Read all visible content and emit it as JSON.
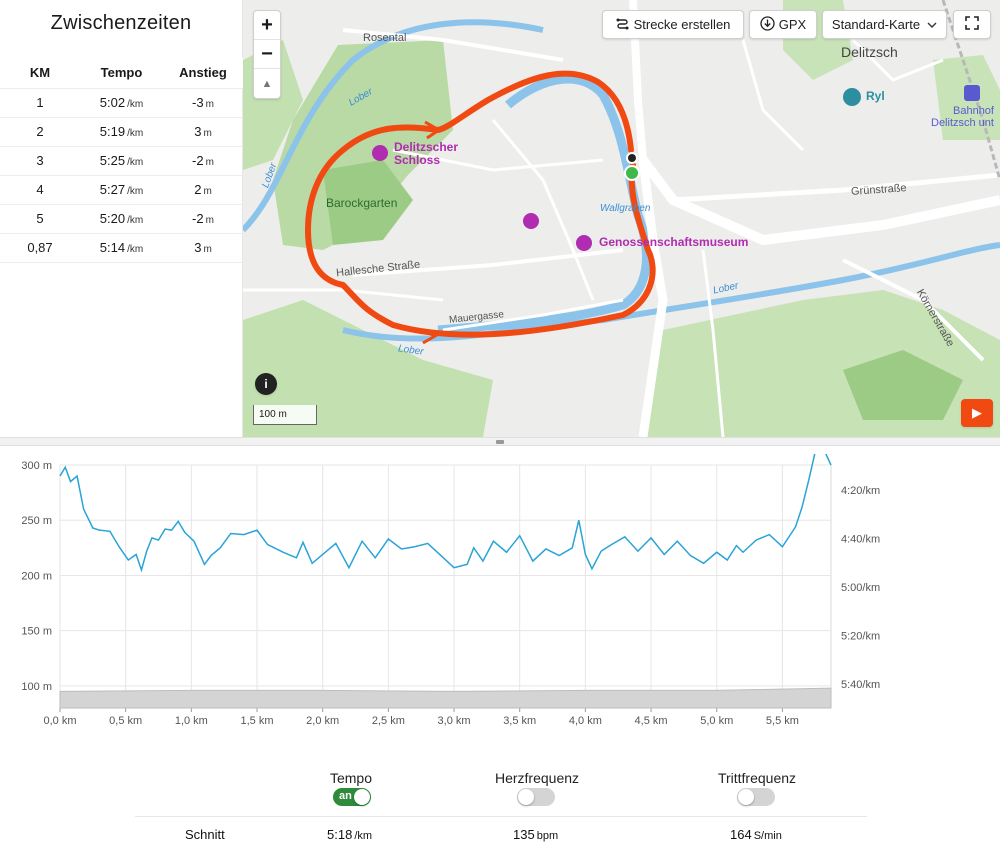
{
  "splits": {
    "title": "Zwischenzeiten",
    "headers": [
      "KM",
      "Tempo",
      "Anstieg"
    ],
    "tempo_unit": "/km",
    "ascent_unit": "m",
    "rows": [
      {
        "km": "1",
        "tempo": "5:02",
        "ascent": "-3"
      },
      {
        "km": "2",
        "tempo": "5:19",
        "ascent": "3"
      },
      {
        "km": "3",
        "tempo": "5:25",
        "ascent": "-2"
      },
      {
        "km": "4",
        "tempo": "5:27",
        "ascent": "2"
      },
      {
        "km": "5",
        "tempo": "5:20",
        "ascent": "-2"
      },
      {
        "km": "0,87",
        "tempo": "5:14",
        "ascent": "3"
      }
    ]
  },
  "map": {
    "buttons": {
      "create_route": "Strecke erstellen",
      "gpx": "GPX",
      "map_type": "Standard-Karte",
      "zoom_in": "+",
      "zoom_out": "−",
      "compass": "▲",
      "info": "i",
      "play": "▶"
    },
    "labels": {
      "town": "Delitzsch",
      "rosental": "Rosental",
      "lober1": "Lober",
      "lober2": "Lober",
      "lober3": "Lober",
      "lober4": "Lober",
      "wallgraben": "Wallgraben",
      "hallesche": "Hallesche Straße",
      "mauergasse": "Mauergasse",
      "gruen": "Grünstraße",
      "koerner": "Körnerstraße",
      "barockgarten": "Barockgarten",
      "schloss_line1": "Delitzscher",
      "schloss_line2": "Schloss",
      "museum": "Genossenschaftsmuseum",
      "ryl": "Ryl",
      "bahnhof_line1": "Bahnhof",
      "bahnhof_line2": "Delitzsch unt"
    },
    "scale": "100 m",
    "colors": {
      "route": "#f04a12",
      "water": "#8cc3ea",
      "park": "#b9d9a5",
      "road": "#ffffff"
    }
  },
  "chart_data": {
    "type": "line",
    "x_unit": "km",
    "xlim": [
      0,
      5.87
    ],
    "x_ticks": [
      "0,0 km",
      "0,5 km",
      "1,0 km",
      "1,5 km",
      "2,0 km",
      "2,5 km",
      "3,0 km",
      "3,5 km",
      "4,0 km",
      "4,5 km",
      "5,0 km",
      "5,5 km"
    ],
    "y_left_ticks": [
      "300 m",
      "250 m",
      "200 m",
      "150 m",
      "100 m"
    ],
    "y_left_range": [
      80,
      300
    ],
    "y_right_ticks": [
      "4:20/km",
      "4:40/km",
      "5:00/km",
      "5:20/km",
      "5:40/km"
    ],
    "elevation_series": {
      "x": [
        0,
        1,
        2,
        3,
        4,
        5,
        5.87
      ],
      "values": [
        95,
        96,
        96,
        95,
        96,
        96,
        98
      ]
    },
    "pace_series": {
      "x": [
        0,
        0.04,
        0.08,
        0.13,
        0.18,
        0.25,
        0.3,
        0.38,
        0.45,
        0.52,
        0.58,
        0.62,
        0.66,
        0.7,
        0.75,
        0.8,
        0.85,
        0.9,
        0.95,
        1.02,
        1.1,
        1.15,
        1.22,
        1.3,
        1.4,
        1.5,
        1.58,
        1.7,
        1.8,
        1.85,
        1.92,
        2.0,
        2.1,
        2.2,
        2.3,
        2.4,
        2.5,
        2.6,
        2.7,
        2.8,
        2.9,
        3.0,
        3.1,
        3.15,
        3.22,
        3.3,
        3.4,
        3.5,
        3.6,
        3.7,
        3.8,
        3.9,
        3.95,
        4.0,
        4.05,
        4.12,
        4.2,
        4.3,
        4.4,
        4.5,
        4.6,
        4.7,
        4.8,
        4.9,
        5.0,
        5.08,
        5.15,
        5.2,
        5.3,
        5.4,
        5.5,
        5.6,
        5.65,
        5.7,
        5.75,
        5.8,
        5.87
      ],
      "values": [
        290,
        298,
        285,
        290,
        260,
        243,
        241,
        240,
        226,
        214,
        219,
        205,
        222,
        234,
        232,
        242,
        241,
        249,
        239,
        231,
        210,
        218,
        225,
        238,
        237,
        241,
        228,
        221,
        216,
        230,
        211,
        219,
        229,
        207,
        231,
        216,
        233,
        224,
        226,
        229,
        218,
        207,
        210,
        225,
        213,
        231,
        221,
        236,
        213,
        224,
        218,
        225,
        250,
        219,
        206,
        222,
        228,
        235,
        222,
        234,
        219,
        231,
        218,
        211,
        221,
        214,
        227,
        221,
        232,
        237,
        226,
        244,
        262,
        286,
        312,
        318,
        300
      ],
      "note_direction": "pace shown on right axis (min/km), smaller value = higher on chart"
    },
    "grid": true
  },
  "toggles": {
    "tempo": {
      "label": "Tempo",
      "state_text": "an",
      "on": true
    },
    "herz": {
      "label": "Herzfrequenz",
      "on": false
    },
    "tritt": {
      "label": "Trittfrequenz",
      "on": false
    }
  },
  "average": {
    "label": "Schnitt",
    "tempo": "5:18",
    "tempo_unit": "/km",
    "hr": "135",
    "hr_unit": "bpm",
    "cadence": "164",
    "cadence_unit": "S/min"
  }
}
